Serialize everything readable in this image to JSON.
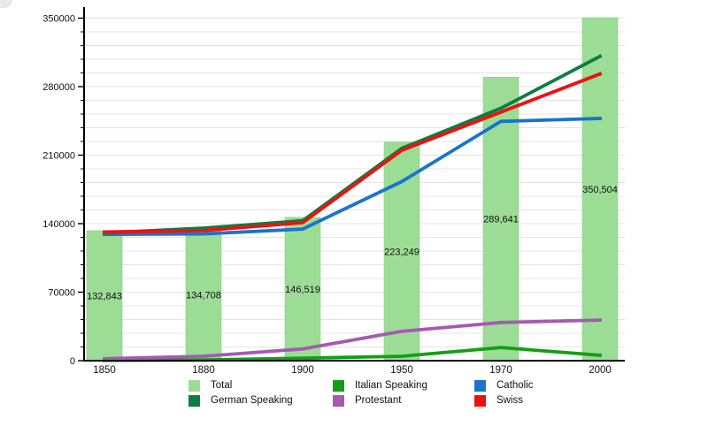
{
  "chart_data": {
    "type": "combo-bar-line",
    "title": "",
    "categories": [
      "1850",
      "1880",
      "1900",
      "1950",
      "1970",
      "2000"
    ],
    "bar_series": {
      "name": "Total",
      "color": "#9bdd95",
      "values": [
        132843,
        134708,
        146519,
        223249,
        289641,
        350504
      ],
      "labels": [
        "132,843",
        "134,708",
        "146,519",
        "223,249",
        "289,641",
        "350,504"
      ]
    },
    "line_series": [
      {
        "name": "German Speaking",
        "color": "#0c7d43",
        "values": [
          130500,
          135500,
          143000,
          217000,
          258000,
          311000
        ]
      },
      {
        "name": "Italian Speaking",
        "color": "#12a012",
        "values": [
          300,
          700,
          2500,
          4500,
          13500,
          5500
        ]
      },
      {
        "name": "Protestant",
        "color": "#a55ab0",
        "values": [
          2000,
          4500,
          12000,
          30000,
          39000,
          41500
        ]
      },
      {
        "name": "Catholic",
        "color": "#1874cd",
        "values": [
          129000,
          129500,
          134500,
          183000,
          244500,
          247500
        ]
      },
      {
        "name": "Swiss",
        "color": "#ee1111",
        "values": [
          131500,
          133000,
          141000,
          215000,
          254000,
          293000
        ]
      }
    ],
    "draw_order": [
      "Italian Speaking",
      "Protestant",
      "Catholic",
      "German Speaking",
      "Swiss"
    ],
    "yaxis": {
      "min": 0,
      "max": 350000,
      "major_step": 70000,
      "minor_step": 14000,
      "tick_labels": [
        "0",
        "70000",
        "140000",
        "210000",
        "280000",
        "350000"
      ]
    },
    "xlabel": "",
    "ylabel": "",
    "grid": "horizontal-minor",
    "legend_position": "bottom",
    "legend": {
      "items": [
        {
          "label": "Total",
          "color": "#9bdd95"
        },
        {
          "label": "German Speaking",
          "color": "#0c7d43"
        },
        {
          "label": "Italian Speaking",
          "color": "#12a012"
        },
        {
          "label": "Protestant",
          "color": "#a55ab0"
        },
        {
          "label": "Catholic",
          "color": "#1874cd"
        },
        {
          "label": "Swiss",
          "color": "#ee1111"
        }
      ]
    }
  }
}
